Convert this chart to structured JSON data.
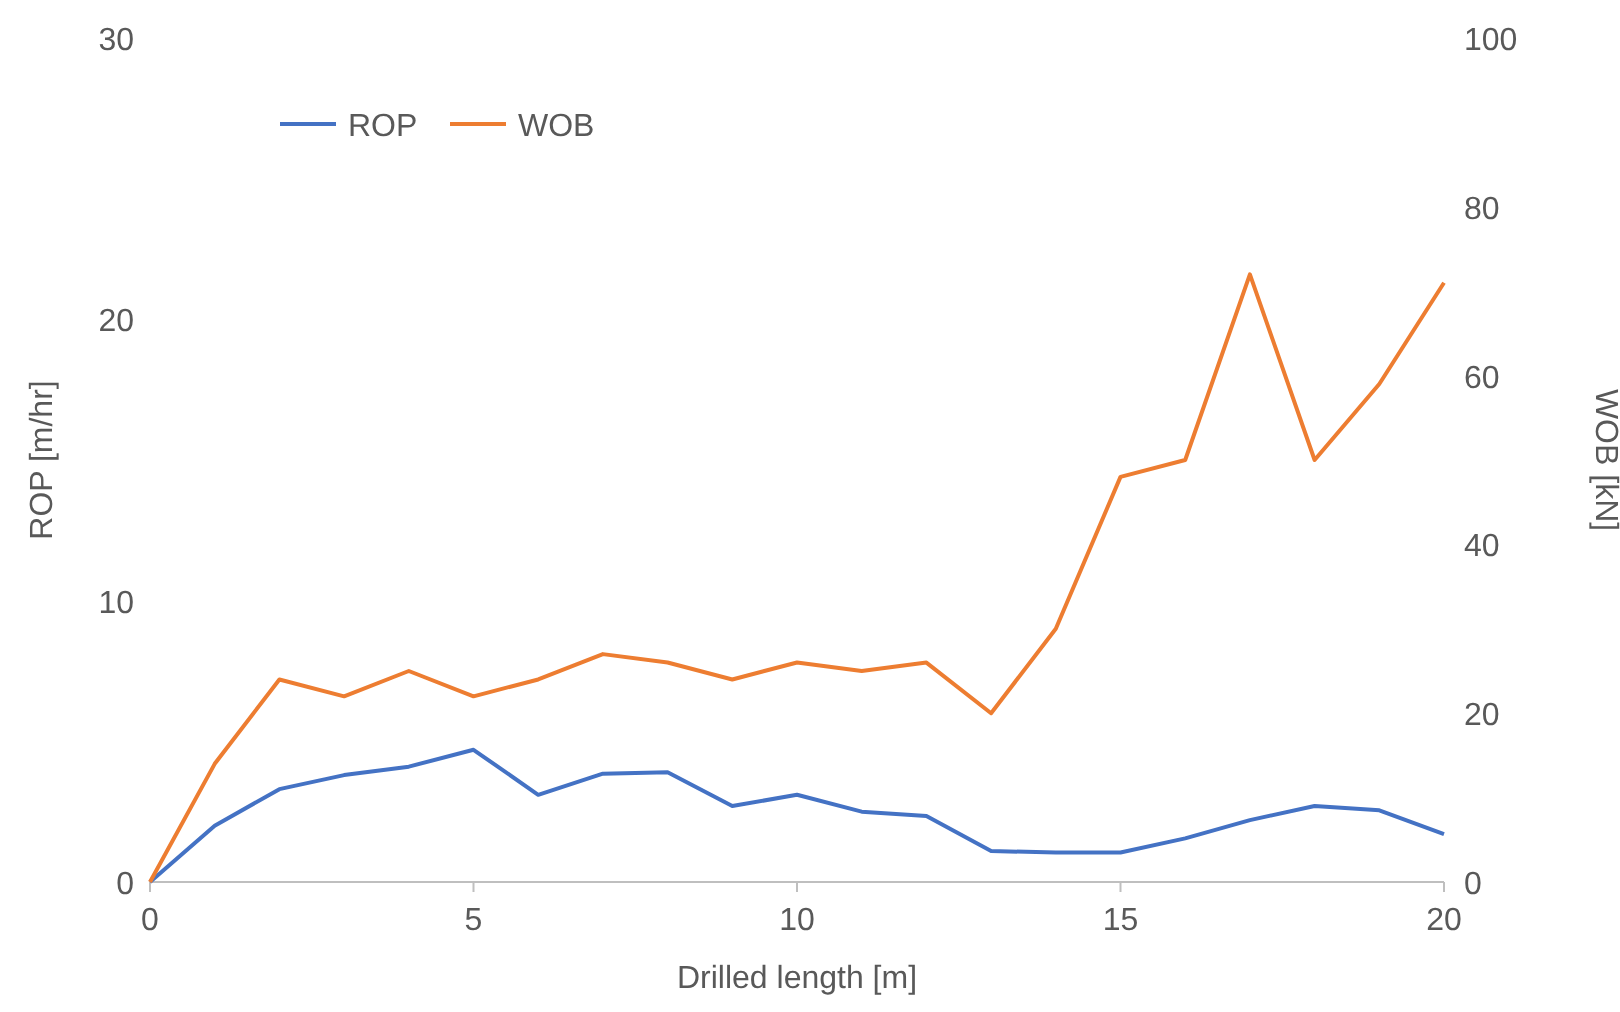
{
  "chart_data": {
    "type": "line",
    "xlabel": "Drilled length [m]",
    "ylabel": "ROP [m/hr]",
    "y2label": "WOB [kN]",
    "x": [
      0,
      1,
      2,
      3,
      4,
      5,
      6,
      7,
      8,
      9,
      10,
      11,
      12,
      13,
      14,
      15,
      16,
      17,
      18,
      19,
      20
    ],
    "series": [
      {
        "name": "ROP",
        "color": "#4472c4",
        "values": [
          0,
          2.0,
          3.3,
          3.8,
          4.1,
          4.7,
          3.1,
          3.85,
          3.9,
          2.7,
          3.1,
          2.5,
          2.35,
          1.1,
          1.05,
          1.05,
          1.55,
          2.2,
          2.7,
          2.55,
          1.7
        ]
      },
      {
        "name": "WOB",
        "color": "#ed7d31",
        "axis": "y2",
        "values": [
          0,
          14,
          24,
          22,
          25,
          22,
          24,
          27,
          26,
          24,
          26,
          25,
          26,
          20,
          30,
          48,
          50,
          72,
          50,
          59,
          71
        ]
      }
    ],
    "xlim": [
      0,
      20
    ],
    "xticks": [
      0,
      5,
      10,
      15,
      20
    ],
    "ylim": [
      0,
      30
    ],
    "yticks": [
      0,
      10,
      20,
      30
    ],
    "y2lim": [
      0,
      100
    ],
    "y2ticks": [
      0,
      20,
      40,
      60,
      80,
      100
    ],
    "legend": "top left",
    "grid": false,
    "marker": "none",
    "line_style": "solid"
  }
}
